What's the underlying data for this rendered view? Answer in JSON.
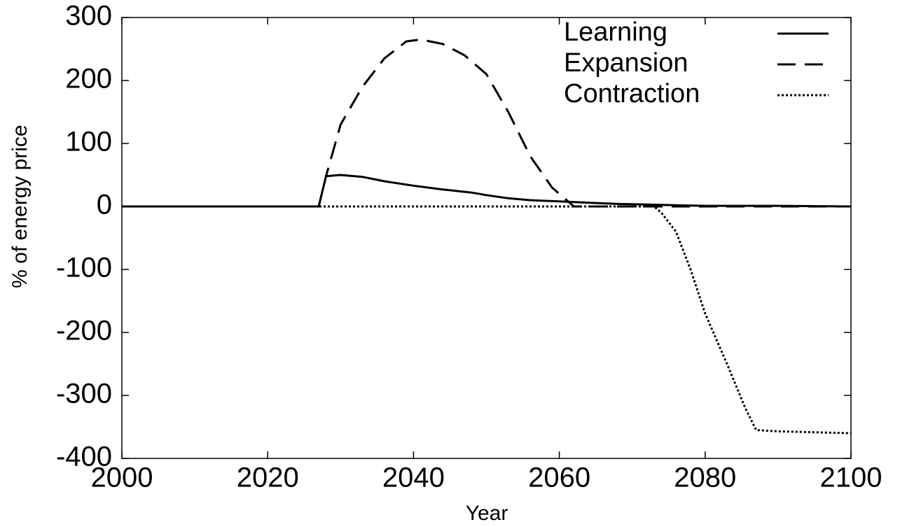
{
  "chart_data": {
    "type": "line",
    "x_label": "Year",
    "y_label": "% of energy price",
    "xlim": [
      2000,
      2100
    ],
    "ylim": [
      -400,
      300
    ],
    "xticks": [
      2000,
      2020,
      2040,
      2060,
      2080,
      2100
    ],
    "yticks": [
      -400,
      -300,
      -200,
      -100,
      0,
      100,
      200,
      300
    ],
    "legend": "upper right",
    "series": [
      {
        "name": "Learning",
        "color": "#000000",
        "dash": "solid",
        "x": [
          2000,
          2027,
          2028,
          2030,
          2033,
          2036,
          2040,
          2044,
          2048,
          2050,
          2053,
          2056,
          2060,
          2064,
          2068,
          2072,
          2076,
          2080,
          2090,
          2100
        ],
        "values": [
          0,
          0,
          48,
          50,
          47,
          40,
          33,
          27,
          22,
          18,
          13,
          10,
          8,
          6,
          4,
          3,
          2,
          1,
          1,
          0
        ]
      },
      {
        "name": "Expansion",
        "color": "#000000",
        "dash": "dashed",
        "x": [
          2000,
          2027,
          2028,
          2030,
          2033,
          2036,
          2039,
          2041,
          2044,
          2047,
          2050,
          2053,
          2056,
          2059,
          2062,
          2100
        ],
        "values": [
          0,
          0,
          48,
          130,
          190,
          235,
          262,
          265,
          258,
          240,
          210,
          150,
          80,
          30,
          0,
          0
        ]
      },
      {
        "name": "Contraction",
        "color": "#000000",
        "dash": "dotted",
        "x": [
          2000,
          2073,
          2074,
          2076,
          2078,
          2080,
          2083,
          2085.5,
          2087,
          2090,
          2100
        ],
        "values": [
          0,
          0,
          -10,
          -40,
          -100,
          -170,
          -250,
          -320,
          -355,
          -357,
          -360
        ]
      }
    ]
  }
}
